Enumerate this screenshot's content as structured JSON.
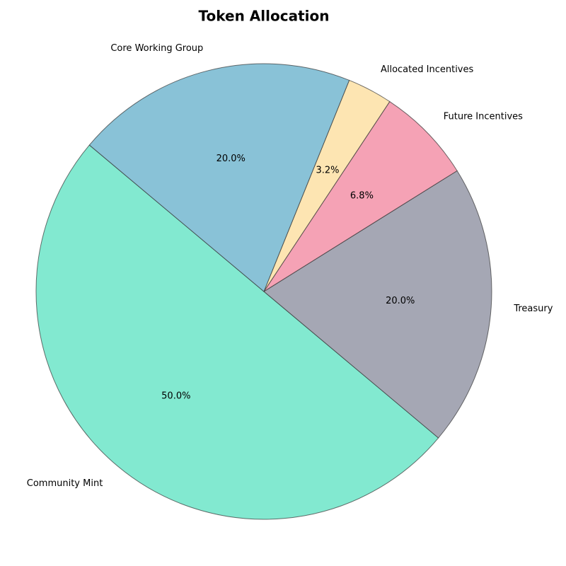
{
  "chart_data": {
    "type": "pie",
    "title": "Token Allocation",
    "categories": [
      "Community Mint",
      "Treasury",
      "Future Incentives",
      "Allocated Incentives",
      "Core Working Group"
    ],
    "values": [
      50.0,
      20.0,
      6.8,
      3.2,
      20.0
    ],
    "value_labels": [
      "50.0%",
      "20.0%",
      "6.8%",
      "3.2%",
      "20.0%"
    ],
    "colors": [
      "#82e9d0",
      "#a5a7b4",
      "#f5a2b5",
      "#fde5b2",
      "#89c2d7"
    ],
    "start_angle": 140
  }
}
